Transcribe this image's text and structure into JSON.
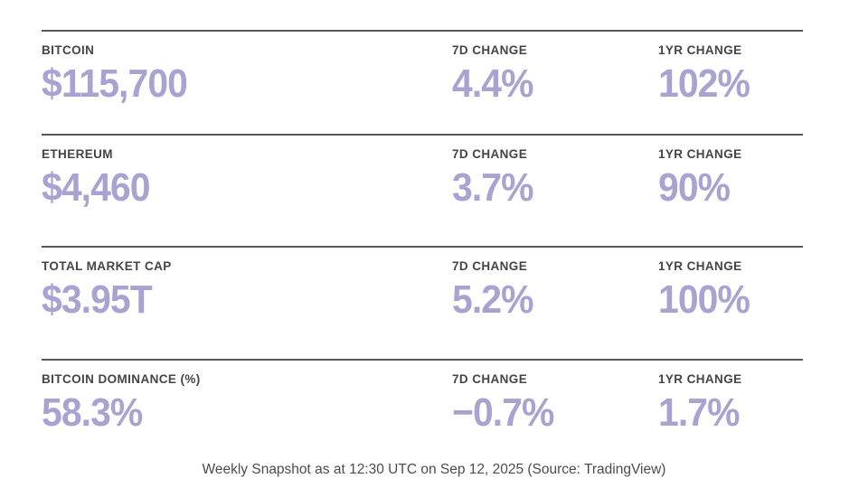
{
  "page": {
    "background_color": "#ffffff",
    "value_color": "#a8a3d0",
    "label_color": "#454549",
    "rule_color": "#58585b",
    "caption_color": "#4c4c4c"
  },
  "table": {
    "col_7d_label": "7D CHANGE",
    "col_1yr_label": "1YR CHANGE",
    "rows": [
      {
        "label": "BITCOIN",
        "value": "$115,700",
        "change_7d": "4.4%",
        "change_1yr": "102%"
      },
      {
        "label": "ETHEREUM",
        "value": "$4,460",
        "change_7d": "3.7%",
        "change_1yr": "90%"
      },
      {
        "label": "TOTAL MARKET CAP",
        "value": "$3.95T",
        "change_7d": "5.2%",
        "change_1yr": "100%"
      },
      {
        "label": "BITCOIN DOMINANCE (%)",
        "value": "58.3%",
        "change_7d": "−0.7%",
        "change_1yr": "1.7%"
      }
    ]
  },
  "footer": {
    "caption": "Weekly Snapshot as at 12:30 UTC on Sep 12, 2025 (Source: TradingView)"
  },
  "chart_data": {
    "type": "table",
    "columns": [
      "Metric",
      "Value",
      "7D Change",
      "1YR Change"
    ],
    "rows": [
      [
        "Bitcoin",
        "$115,700",
        "4.4%",
        "102%"
      ],
      [
        "Ethereum",
        "$4,460",
        "3.7%",
        "90%"
      ],
      [
        "Total Market Cap",
        "$3.95T",
        "5.2%",
        "100%"
      ],
      [
        "Bitcoin Dominance (%)",
        "58.3%",
        "−0.7%",
        "1.7%"
      ]
    ],
    "numeric_rows": [
      {
        "metric": "Bitcoin",
        "value_usd": 115700,
        "change_7d_pct": 4.4,
        "change_1yr_pct": 102
      },
      {
        "metric": "Ethereum",
        "value_usd": 4460,
        "change_7d_pct": 3.7,
        "change_1yr_pct": 90
      },
      {
        "metric": "Total Market Cap",
        "value_usd_trillions": 3.95,
        "change_7d_pct": 5.2,
        "change_1yr_pct": 100
      },
      {
        "metric": "Bitcoin Dominance (%)",
        "value_pct": 58.3,
        "change_7d_pct": -0.7,
        "change_1yr_pct": 1.7
      }
    ],
    "title": "Weekly Snapshot as at 12:30 UTC on Sep 12, 2025",
    "source": "TradingView"
  }
}
